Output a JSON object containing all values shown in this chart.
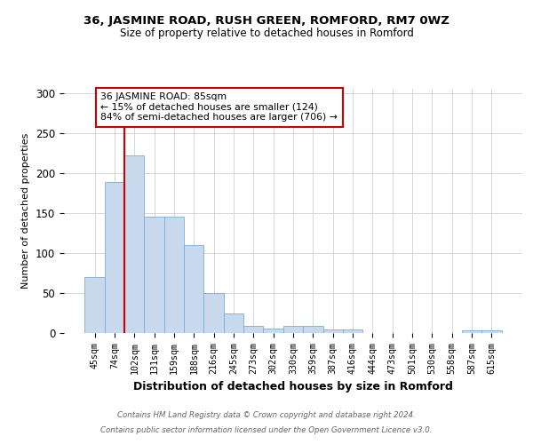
{
  "title1": "36, JASMINE ROAD, RUSH GREEN, ROMFORD, RM7 0WZ",
  "title2": "Size of property relative to detached houses in Romford",
  "xlabel": "Distribution of detached houses by size in Romford",
  "ylabel": "Number of detached properties",
  "categories": [
    "45sqm",
    "74sqm",
    "102sqm",
    "131sqm",
    "159sqm",
    "188sqm",
    "216sqm",
    "245sqm",
    "273sqm",
    "302sqm",
    "330sqm",
    "359sqm",
    "387sqm",
    "416sqm",
    "444sqm",
    "473sqm",
    "501sqm",
    "530sqm",
    "558sqm",
    "587sqm",
    "615sqm"
  ],
  "values": [
    70,
    188,
    222,
    145,
    145,
    110,
    50,
    24,
    9,
    6,
    9,
    9,
    4,
    4,
    0,
    0,
    0,
    0,
    0,
    3,
    3
  ],
  "bar_color": "#c8d9ee",
  "bar_edge_color": "#7aaed4",
  "bar_width": 1.0,
  "vline_x": 1.5,
  "vline_color": "#cc0000",
  "annotation_text": "36 JASMINE ROAD: 85sqm\n← 15% of detached houses are smaller (124)\n84% of semi-detached houses are larger (706) →",
  "annotation_box_color": "#ffffff",
  "annotation_box_edge": "#cc0000",
  "ylim": [
    0,
    305
  ],
  "yticks": [
    0,
    50,
    100,
    150,
    200,
    250,
    300
  ],
  "footnote1": "Contains HM Land Registry data © Crown copyright and database right 2024.",
  "footnote2": "Contains public sector information licensed under the Open Government Licence v3.0.",
  "background_color": "#ffffff",
  "grid_color": "#d0d0d0"
}
